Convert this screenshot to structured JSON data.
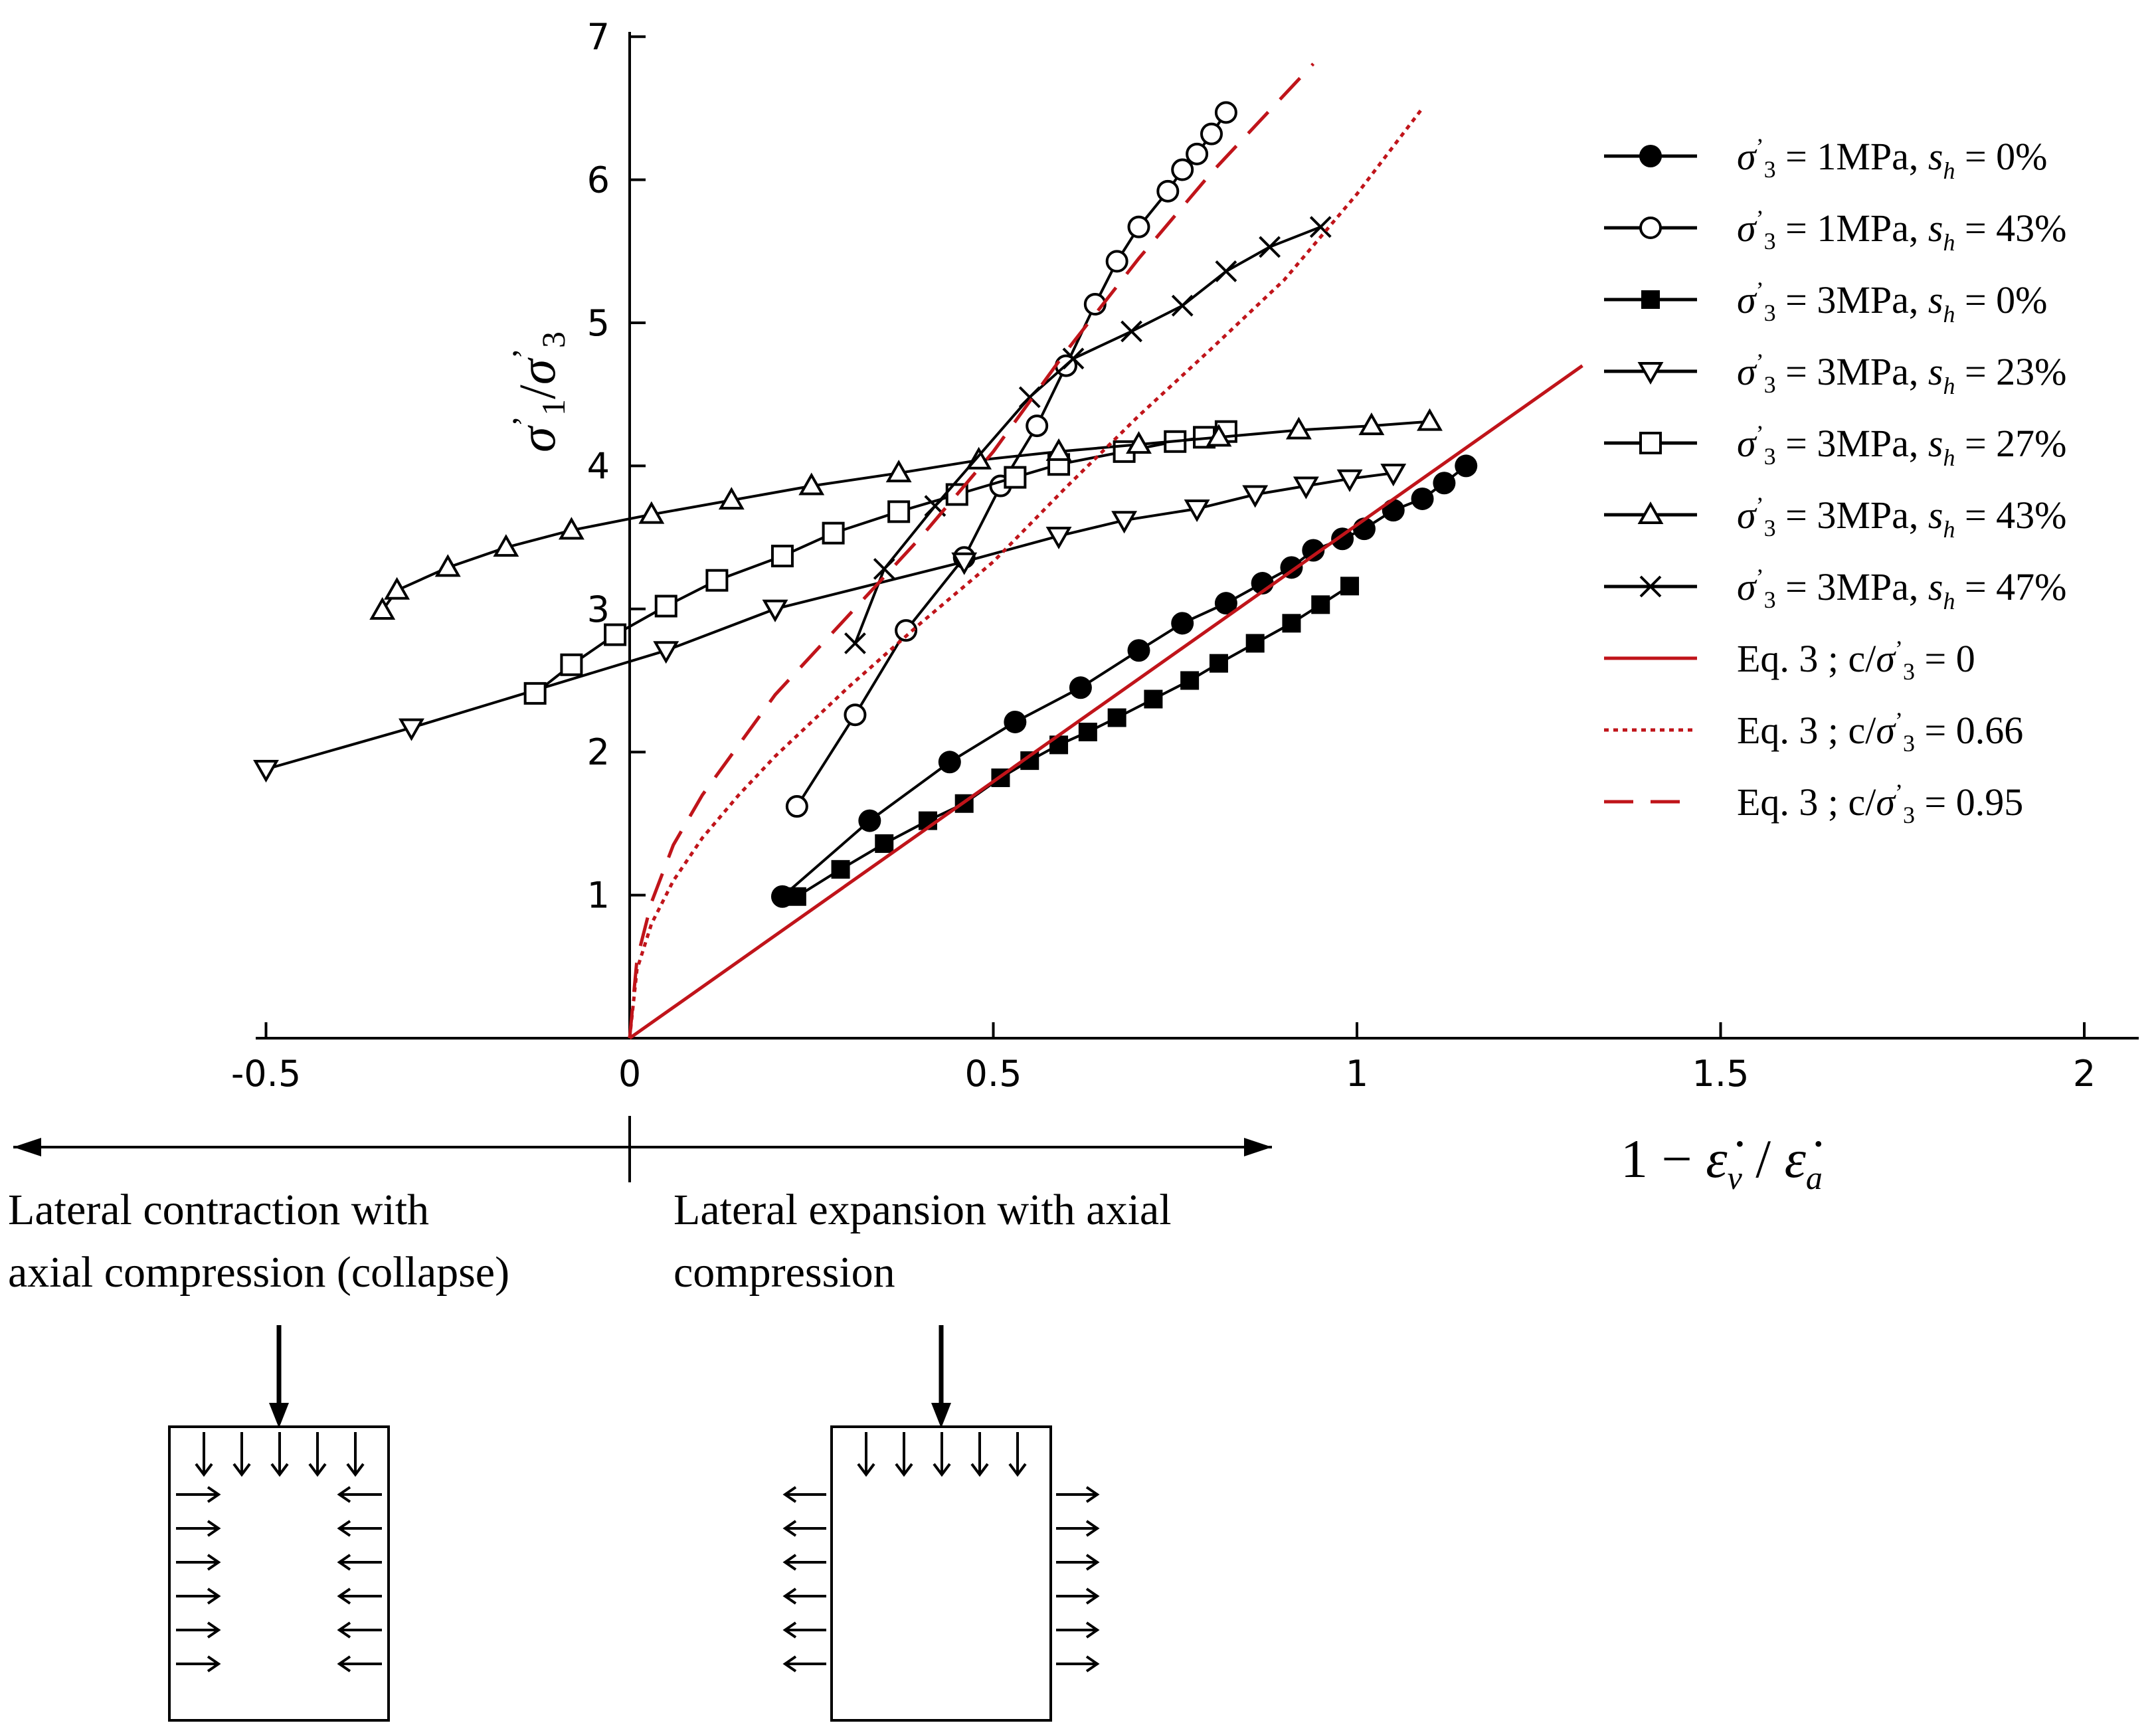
{
  "chart_data": {
    "type": "line",
    "title": "",
    "xlabel": "1 − ε̇v / ε̇a",
    "ylabel": "σ'1/σ'3",
    "xlim": [
      -0.55,
      2.05
    ],
    "ylim": [
      0,
      7
    ],
    "x_ticks": [
      "-0.5",
      "0",
      "0.5",
      "1",
      "1.5",
      "2"
    ],
    "y_ticks": [
      "1",
      "2",
      "3",
      "4",
      "5",
      "6",
      "7"
    ],
    "grid": false,
    "legend_position": "right",
    "series": [
      {
        "name": "σ'3 = 1MPa, sh = 0%",
        "marker": "filled-circle",
        "color": "#000000",
        "x": [
          0.21,
          0.33,
          0.44,
          0.53,
          0.62,
          0.7,
          0.76,
          0.82,
          0.87,
          0.91,
          0.94,
          0.98,
          1.01,
          1.05,
          1.09,
          1.12,
          1.15
        ],
        "y": [
          0.99,
          1.52,
          1.93,
          2.21,
          2.45,
          2.71,
          2.9,
          3.04,
          3.18,
          3.29,
          3.41,
          3.49,
          3.56,
          3.69,
          3.77,
          3.88,
          4.0
        ]
      },
      {
        "name": "σ'3 = 1MPa, sh = 43%",
        "marker": "open-circle",
        "color": "#000000",
        "x": [
          0.23,
          0.31,
          0.38,
          0.46,
          0.51,
          0.56,
          0.6,
          0.64,
          0.67,
          0.7,
          0.74,
          0.76,
          0.78,
          0.8,
          0.82
        ],
        "y": [
          1.62,
          2.26,
          2.85,
          3.36,
          3.86,
          4.28,
          4.7,
          5.13,
          5.43,
          5.67,
          5.92,
          6.07,
          6.18,
          6.32,
          6.47
        ]
      },
      {
        "name": "σ'3 = 3MPa, sh = 0%",
        "marker": "filled-square",
        "color": "#000000",
        "x": [
          0.23,
          0.29,
          0.35,
          0.41,
          0.46,
          0.51,
          0.55,
          0.59,
          0.63,
          0.67,
          0.72,
          0.77,
          0.81,
          0.86,
          0.91,
          0.95,
          0.99
        ],
        "y": [
          0.99,
          1.18,
          1.36,
          1.52,
          1.64,
          1.82,
          1.94,
          2.05,
          2.14,
          2.24,
          2.37,
          2.5,
          2.62,
          2.76,
          2.9,
          3.03,
          3.16
        ]
      },
      {
        "name": "σ'3 = 3MPa, sh = 23%",
        "marker": "open-triangle-down",
        "color": "#000000",
        "x": [
          -0.5,
          -0.3,
          0.05,
          0.2,
          0.46,
          0.59,
          0.68,
          0.78,
          0.86,
          0.93,
          0.99,
          1.05
        ],
        "y": [
          1.88,
          2.17,
          2.71,
          3.0,
          3.33,
          3.51,
          3.62,
          3.7,
          3.8,
          3.86,
          3.91,
          3.95
        ]
      },
      {
        "name": "σ'3 = 3MPa, sh = 27%",
        "marker": "open-square",
        "color": "#000000",
        "x": [
          -0.13,
          -0.08,
          -0.02,
          0.05,
          0.12,
          0.21,
          0.28,
          0.37,
          0.45,
          0.53,
          0.59,
          0.68,
          0.75,
          0.79,
          0.82
        ],
        "y": [
          2.41,
          2.61,
          2.82,
          3.02,
          3.2,
          3.37,
          3.53,
          3.68,
          3.8,
          3.92,
          4.01,
          4.1,
          4.17,
          4.2,
          4.24
        ]
      },
      {
        "name": "σ'3 = 3MPa, sh = 43%",
        "marker": "open-triangle-up",
        "color": "#000000",
        "x": [
          -0.34,
          -0.32,
          -0.25,
          -0.17,
          -0.08,
          0.03,
          0.14,
          0.25,
          0.37,
          0.48,
          0.59,
          0.7,
          0.81,
          0.92,
          1.02,
          1.1
        ],
        "y": [
          2.99,
          3.13,
          3.29,
          3.43,
          3.55,
          3.66,
          3.76,
          3.86,
          3.95,
          4.04,
          4.1,
          4.15,
          4.2,
          4.25,
          4.28,
          4.31
        ]
      },
      {
        "name": "σ'3 = 3MPa, sh = 47%",
        "marker": "cross",
        "color": "#000000",
        "x": [
          0.31,
          0.35,
          0.42,
          0.55,
          0.61,
          0.69,
          0.76,
          0.82,
          0.88,
          0.95
        ],
        "y": [
          2.76,
          3.28,
          3.72,
          4.48,
          4.75,
          4.94,
          5.12,
          5.36,
          5.53,
          5.67
        ]
      },
      {
        "name": "Eq. 3 ; c/σ'3 = 0",
        "line_style": "solid",
        "color": "#c0141a",
        "x": [
          0,
          1.31
        ],
        "y": [
          0,
          4.7
        ]
      },
      {
        "name": "Eq. 3 ; c/σ'3 = 0.66",
        "line_style": "dotted",
        "color": "#c0141a",
        "x": [
          0,
          0.01,
          0.03,
          0.06,
          0.1,
          0.15,
          0.2,
          0.3,
          0.4,
          0.5,
          0.6,
          0.7,
          0.8,
          0.9,
          1.0,
          1.09
        ],
        "y": [
          0,
          0.48,
          0.8,
          1.1,
          1.4,
          1.7,
          1.97,
          2.45,
          2.9,
          3.33,
          3.85,
          4.35,
          4.82,
          5.3,
          5.9,
          6.5
        ]
      },
      {
        "name": "Eq. 3 ; c/σ'3 = 0.95",
        "line_style": "dashed",
        "color": "#c0141a",
        "x": [
          0,
          0.01,
          0.03,
          0.06,
          0.1,
          0.15,
          0.2,
          0.3,
          0.4,
          0.5,
          0.6,
          0.7,
          0.8,
          0.94
        ],
        "y": [
          0,
          0.55,
          0.95,
          1.35,
          1.7,
          2.05,
          2.4,
          2.95,
          3.5,
          4.1,
          4.8,
          5.45,
          6.05,
          6.81
        ]
      }
    ],
    "annotations": {
      "left_arrow_label_line1": "Lateral contraction with",
      "left_arrow_label_line2": "axial compression (collapse)",
      "right_arrow_label_line1": "Lateral expansion with axial",
      "right_arrow_label_line2": "compression"
    }
  }
}
